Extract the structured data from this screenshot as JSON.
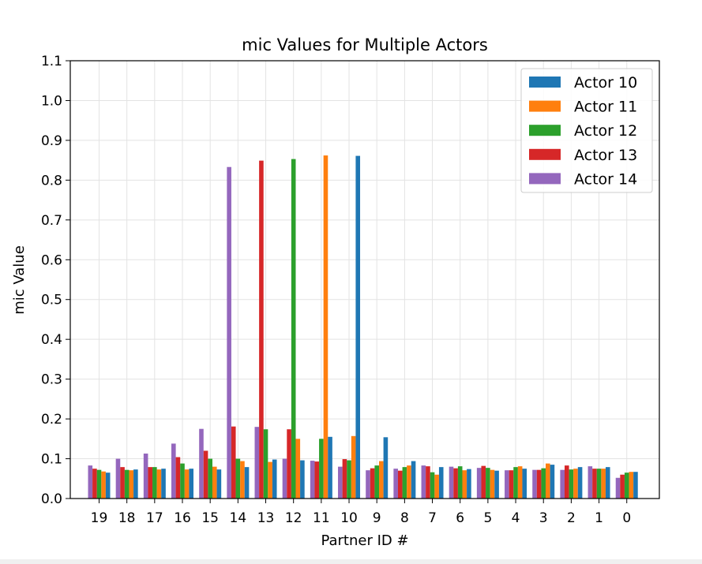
{
  "chart_data": {
    "type": "bar",
    "title": "mic Values for Multiple Actors",
    "xlabel": "Partner ID #",
    "ylabel": "mic Value",
    "ylim": [
      0,
      1.1
    ],
    "yticks": [
      "0.0",
      "0.1",
      "0.2",
      "0.3",
      "0.4",
      "0.5",
      "0.6",
      "0.7",
      "0.8",
      "0.9",
      "1.0",
      "1.1"
    ],
    "categories": [
      "19",
      "18",
      "17",
      "16",
      "15",
      "14",
      "13",
      "12",
      "11",
      "10",
      "9",
      "8",
      "7",
      "6",
      "5",
      "4",
      "3",
      "2",
      "1",
      "0"
    ],
    "grid": true,
    "legend_position": "top-right",
    "series": [
      {
        "name": "Actor 14",
        "color": "#9467bd",
        "values": [
          0.083,
          0.1,
          0.113,
          0.138,
          0.175,
          0.833,
          0.18,
          0.1,
          0.095,
          0.08,
          0.071,
          0.075,
          0.083,
          0.08,
          0.077,
          0.071,
          0.072,
          0.072,
          0.081,
          0.052
        ]
      },
      {
        "name": "Actor 13",
        "color": "#d62728",
        "values": [
          0.075,
          0.079,
          0.079,
          0.104,
          0.12,
          0.181,
          0.849,
          0.174,
          0.093,
          0.099,
          0.076,
          0.07,
          0.081,
          0.076,
          0.082,
          0.071,
          0.072,
          0.083,
          0.075,
          0.06
        ]
      },
      {
        "name": "Actor 12",
        "color": "#2ca02c",
        "values": [
          0.072,
          0.072,
          0.079,
          0.088,
          0.1,
          0.1,
          0.174,
          0.853,
          0.15,
          0.096,
          0.083,
          0.079,
          0.066,
          0.081,
          0.077,
          0.079,
          0.076,
          0.073,
          0.075,
          0.065
        ]
      },
      {
        "name": "Actor 11",
        "color": "#ff7f0e",
        "values": [
          0.068,
          0.071,
          0.073,
          0.073,
          0.08,
          0.094,
          0.092,
          0.15,
          0.862,
          0.157,
          0.094,
          0.083,
          0.06,
          0.071,
          0.072,
          0.081,
          0.088,
          0.075,
          0.075,
          0.067
        ]
      },
      {
        "name": "Actor 10",
        "color": "#1f77b4",
        "values": [
          0.065,
          0.073,
          0.075,
          0.075,
          0.073,
          0.079,
          0.098,
          0.096,
          0.155,
          0.861,
          0.154,
          0.094,
          0.079,
          0.074,
          0.07,
          0.075,
          0.085,
          0.079,
          0.079,
          0.067
        ]
      }
    ],
    "legend_order": [
      "Actor 10",
      "Actor 11",
      "Actor 12",
      "Actor 13",
      "Actor 14"
    ]
  }
}
